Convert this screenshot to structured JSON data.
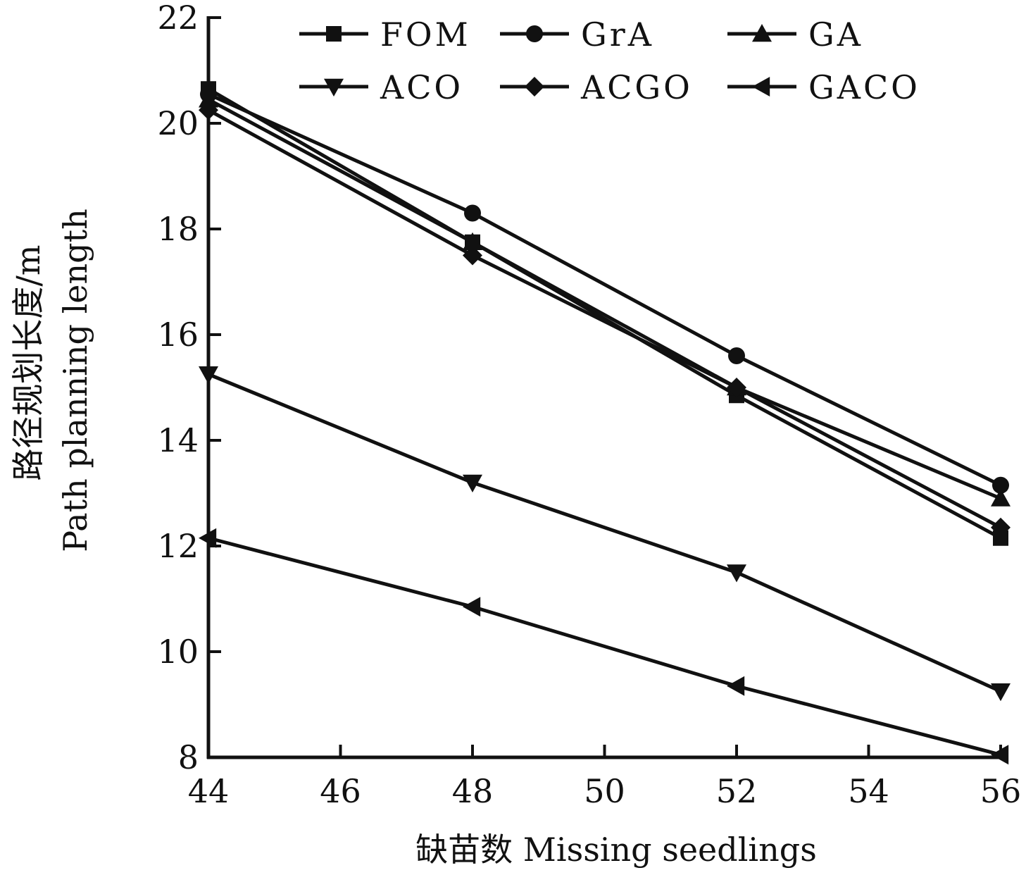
{
  "chart_data": {
    "type": "line",
    "title": "",
    "xlabel": "缺苗数 Missing seedlings",
    "ylabel_cn": "路径规划长度/m",
    "ylabel_en": "Path planning length",
    "xlim": [
      44,
      56
    ],
    "ylim": [
      8,
      22
    ],
    "xticks": [
      44,
      46,
      48,
      50,
      52,
      54,
      56
    ],
    "yticks": [
      8,
      10,
      12,
      14,
      16,
      18,
      20,
      22
    ],
    "x": [
      44,
      48,
      52,
      56
    ],
    "grid": false,
    "legend_position": "top",
    "series": [
      {
        "name": "FOM",
        "marker": "square",
        "values": [
          20.65,
          17.75,
          14.85,
          12.15
        ]
      },
      {
        "name": "GrA",
        "marker": "circle",
        "values": [
          20.55,
          18.3,
          15.6,
          13.15
        ]
      },
      {
        "name": "GA",
        "marker": "triangle-up",
        "values": [
          20.45,
          17.75,
          15.0,
          12.9
        ]
      },
      {
        "name": "ACO",
        "marker": "triangle-down",
        "values": [
          15.25,
          13.2,
          11.5,
          9.25
        ]
      },
      {
        "name": "ACGO",
        "marker": "diamond",
        "values": [
          20.25,
          17.5,
          15.0,
          12.35
        ]
      },
      {
        "name": "GACO",
        "marker": "triangle-left",
        "values": [
          12.15,
          10.85,
          9.35,
          8.05
        ]
      }
    ]
  }
}
